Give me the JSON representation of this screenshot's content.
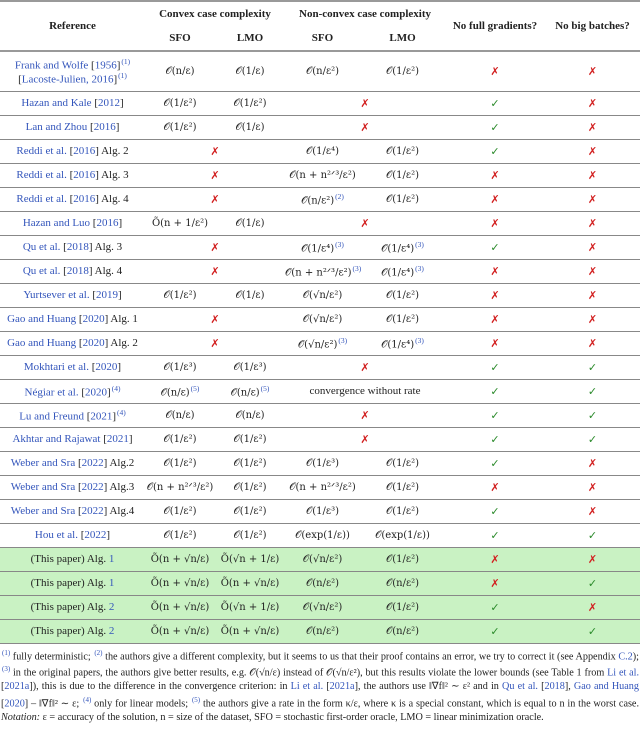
{
  "header": {
    "reference": "Reference",
    "convex": "Convex case complexity",
    "nonconvex": "Non-convex case complexity",
    "sfo": "SFO",
    "lmo": "LMO",
    "no_full": "No full gradients?",
    "no_batch": "No big batches?"
  },
  "colors": {
    "link": "#3355bb",
    "cross": "#d22020",
    "check": "#2a8a2a",
    "ours_bg": "#c9f2c3"
  },
  "rows": [
    {
      "ref": {
        "a": "Frank and Wolfe",
        "y": "1956",
        "n": "(1)"
      },
      "ref2": {
        "a": "Lacoste-Julien, 2016",
        "n": "(1)"
      },
      "cx": [
        {
          "v": "𝒪(n/ε)"
        },
        {
          "v": "𝒪(1/ε)"
        }
      ],
      "nc": [
        {
          "v": "𝒪(n/ε²)"
        },
        {
          "v": "𝒪(1/ε²)"
        }
      ],
      "full": "✗",
      "batch": "✗"
    },
    {
      "ref": {
        "a": "Hazan and Kale",
        "y": "2012"
      },
      "cx": [
        {
          "v": "𝒪(1/ε²)"
        },
        {
          "v": "𝒪(1/ε²)"
        }
      ],
      "nc": "✗",
      "full": "✓",
      "batch": "✗"
    },
    {
      "ref": {
        "a": "Lan and Zhou",
        "y": "2016"
      },
      "cx": [
        {
          "v": "𝒪(1/ε²)"
        },
        {
          "v": "𝒪(1/ε)"
        }
      ],
      "nc": "✗",
      "full": "✓",
      "batch": "✗"
    },
    {
      "ref": {
        "a": "Reddi et al.",
        "y": "2016",
        "s": "Alg. 2"
      },
      "cx": "✗",
      "nc": [
        {
          "v": "𝒪(1/ε⁴)"
        },
        {
          "v": "𝒪(1/ε²)"
        }
      ],
      "full": "✓",
      "batch": "✗"
    },
    {
      "ref": {
        "a": "Reddi et al.",
        "y": "2016",
        "s": "Alg. 3"
      },
      "cx": "✗",
      "nc": [
        {
          "v": "𝒪(n + n²ᐟ³/ε²)"
        },
        {
          "v": "𝒪(1/ε²)"
        }
      ],
      "full": "✗",
      "batch": "✗"
    },
    {
      "ref": {
        "a": "Reddi et al.",
        "y": "2016",
        "s": "Alg. 4"
      },
      "cx": "✗",
      "nc": [
        {
          "v": "𝒪(n/ε²)",
          "n": "(2)"
        },
        {
          "v": "𝒪(1/ε²)"
        }
      ],
      "full": "✗",
      "batch": "✗"
    },
    {
      "ref": {
        "a": "Hazan and Luo",
        "y": "2016"
      },
      "cx": [
        {
          "v": "Õ(n + 1/ε²)"
        },
        {
          "v": "𝒪(1/ε)"
        }
      ],
      "nc": "✗",
      "full": "✗",
      "batch": "✗"
    },
    {
      "ref": {
        "a": "Qu et al.",
        "y": "2018",
        "s": "Alg. 3"
      },
      "cx": "✗",
      "nc": [
        {
          "v": "𝒪(1/ε⁴)",
          "n": "(3)"
        },
        {
          "v": "𝒪(1/ε⁴)",
          "n": "(3)"
        }
      ],
      "full": "✓",
      "batch": "✗"
    },
    {
      "ref": {
        "a": "Qu et al.",
        "y": "2018",
        "s": "Alg. 4"
      },
      "cx": "✗",
      "nc": [
        {
          "v": "𝒪(n + n²ᐟ³/ε²)",
          "n": "(3)"
        },
        {
          "v": "𝒪(1/ε⁴)",
          "n": "(3)"
        }
      ],
      "full": "✗",
      "batch": "✗"
    },
    {
      "ref": {
        "a": "Yurtsever et al.",
        "y": "2019"
      },
      "cx": [
        {
          "v": "𝒪(1/ε²)"
        },
        {
          "v": "𝒪(1/ε)"
        }
      ],
      "nc": [
        {
          "v": "𝒪(√n/ε²)"
        },
        {
          "v": "𝒪(1/ε²)"
        }
      ],
      "full": "✗",
      "batch": "✗"
    },
    {
      "ref": {
        "a": "Gao and Huang",
        "y": "2020",
        "s": "Alg. 1"
      },
      "cx": "✗",
      "nc": [
        {
          "v": "𝒪(√n/ε²)"
        },
        {
          "v": "𝒪(1/ε²)"
        }
      ],
      "full": "✗",
      "batch": "✗"
    },
    {
      "ref": {
        "a": "Gao and Huang",
        "y": "2020",
        "s": "Alg. 2"
      },
      "cx": "✗",
      "nc": [
        {
          "v": "𝒪(√n/ε²)",
          "n": "(3)"
        },
        {
          "v": "𝒪(1/ε⁴)",
          "n": "(3)"
        }
      ],
      "full": "✗",
      "batch": "✗"
    },
    {
      "ref": {
        "a": "Mokhtari et al.",
        "y": "2020"
      },
      "cx": [
        {
          "v": "𝒪(1/ε³)"
        },
        {
          "v": "𝒪(1/ε³)"
        }
      ],
      "nc": "✗",
      "full": "✓",
      "batch": "✓"
    },
    {
      "ref": {
        "a": "Négiar et al.",
        "y": "2020",
        "n": "(4)"
      },
      "cx": [
        {
          "v": "𝒪(n/ε)",
          "n": "(5)"
        },
        {
          "v": "𝒪(n/ε)",
          "n": "(5)"
        }
      ],
      "nc": "convergence without rate",
      "full": "✓",
      "batch": "✓"
    },
    {
      "ref": {
        "a": "Lu and Freund",
        "y": "2021",
        "n": "(4)"
      },
      "cx": [
        {
          "v": "𝒪(n/ε)"
        },
        {
          "v": "𝒪(n/ε)"
        }
      ],
      "nc": "✗",
      "full": "✓",
      "batch": "✓"
    },
    {
      "ref": {
        "a": "Akhtar and Rajawat",
        "y": "2021"
      },
      "cx": [
        {
          "v": "𝒪(1/ε²)"
        },
        {
          "v": "𝒪(1/ε²)"
        }
      ],
      "nc": "✗",
      "full": "✓",
      "batch": "✓"
    },
    {
      "ref": {
        "a": "Weber and Sra",
        "y": "2022",
        "s": "Alg.2"
      },
      "cx": [
        {
          "v": "𝒪(1/ε²)"
        },
        {
          "v": "𝒪(1/ε²)"
        }
      ],
      "nc": [
        {
          "v": "𝒪(1/ε³)"
        },
        {
          "v": "𝒪(1/ε²)"
        }
      ],
      "full": "✓",
      "batch": "✗"
    },
    {
      "ref": {
        "a": "Weber and Sra",
        "y": "2022",
        "s": "Alg.3"
      },
      "cx": [
        {
          "v": "𝒪(n + n²ᐟ³/ε²)"
        },
        {
          "v": "𝒪(1/ε²)"
        }
      ],
      "nc": [
        {
          "v": "𝒪(n + n²ᐟ³/ε²)"
        },
        {
          "v": "𝒪(1/ε²)"
        }
      ],
      "full": "✗",
      "batch": "✗"
    },
    {
      "ref": {
        "a": "Weber and Sra",
        "y": "2022",
        "s": "Alg.4"
      },
      "cx": [
        {
          "v": "𝒪(1/ε²)"
        },
        {
          "v": "𝒪(1/ε²)"
        }
      ],
      "nc": [
        {
          "v": "𝒪(1/ε³)"
        },
        {
          "v": "𝒪(1/ε²)"
        }
      ],
      "full": "✓",
      "batch": "✗"
    },
    {
      "ref": {
        "a": "Hou et al.",
        "y": "2022"
      },
      "cx": [
        {
          "v": "𝒪(1/ε²)"
        },
        {
          "v": "𝒪(1/ε²)"
        }
      ],
      "nc": [
        {
          "v": "𝒪(exp(1/ε))"
        },
        {
          "v": "𝒪(exp(1/ε))"
        }
      ],
      "full": "✓",
      "batch": "✓"
    },
    {
      "ours": true,
      "ref": {
        "p": "(This paper) Alg.",
        "alg": "1"
      },
      "cx": [
        {
          "v": "Õ(n + √n/ε)"
        },
        {
          "v": "Õ(√n + 1/ε)"
        }
      ],
      "nc": [
        {
          "v": "𝒪(√n/ε²)"
        },
        {
          "v": "𝒪(1/ε²)"
        }
      ],
      "full": "✗",
      "batch": "✗"
    },
    {
      "ours": true,
      "ref": {
        "p": "(This paper) Alg.",
        "alg": "1"
      },
      "cx": [
        {
          "v": "Õ(n + √n/ε)"
        },
        {
          "v": "Õ(n + √n/ε)"
        }
      ],
      "nc": [
        {
          "v": "𝒪(n/ε²)"
        },
        {
          "v": "𝒪(n/ε²)"
        }
      ],
      "full": "✗",
      "batch": "✓"
    },
    {
      "ours": true,
      "ref": {
        "p": "(This paper) Alg.",
        "alg": "2"
      },
      "cx": [
        {
          "v": "Õ(n + √n/ε)"
        },
        {
          "v": "Õ(√n + 1/ε)"
        }
      ],
      "nc": [
        {
          "v": "𝒪(√n/ε²)"
        },
        {
          "v": "𝒪(1/ε²)"
        }
      ],
      "full": "✓",
      "batch": "✗"
    },
    {
      "ours": true,
      "ref": {
        "p": "(This paper) Alg.",
        "alg": "2"
      },
      "cx": [
        {
          "v": "Õ(n + √n/ε)"
        },
        {
          "v": "Õ(n + √n/ε)"
        }
      ],
      "nc": [
        {
          "v": "𝒪(n/ε²)"
        },
        {
          "v": "𝒪(n/ε²)"
        }
      ],
      "full": "✓",
      "batch": "✓"
    }
  ],
  "footnote": [
    {
      "t": "(1)",
      "sup": true
    },
    {
      "t": " fully deterministic; "
    },
    {
      "t": "(2)",
      "sup": true
    },
    {
      "t": " the authors give a different complexity, but it seems to us that their proof contains an error, we try to correct it (see Appendix "
    },
    {
      "t": "C.2",
      "l": true
    },
    {
      "t": "); "
    },
    {
      "t": "(3)",
      "sup": true
    },
    {
      "t": " in the original papers, the authors give better results, e.g. 𝒪(√n/ε) instead of 𝒪(√n/ε²), but this results violate the lower bounds (see Table 1 from "
    },
    {
      "t": "Li et al.",
      "l": true
    },
    {
      "t": " ["
    },
    {
      "t": "2021a",
      "l": true
    },
    {
      "t": "]), this is due to the difference in the convergence criterion: in "
    },
    {
      "t": "Li et al.",
      "l": true
    },
    {
      "t": " ["
    },
    {
      "t": "2021a",
      "l": true
    },
    {
      "t": "], the authors use ‖∇f‖² ∼ ε² and in "
    },
    {
      "t": "Qu et al.",
      "l": true
    },
    {
      "t": " ["
    },
    {
      "t": "2018",
      "l": true
    },
    {
      "t": "], "
    },
    {
      "t": "Gao and Huang",
      "l": true
    },
    {
      "t": " ["
    },
    {
      "t": "2020",
      "l": true
    },
    {
      "t": "] – ‖∇f‖² ∼ ε; "
    },
    {
      "t": "(4)",
      "sup": true
    },
    {
      "t": " only for linear models; "
    },
    {
      "t": "(5)",
      "sup": true
    },
    {
      "t": " the authors give a rate in the form κ/ε, where κ is a special constant, which is equal to n in the worst case. "
    },
    {
      "t": "Notation:",
      "i": true
    },
    {
      "t": " ε = accuracy of the solution, n = size of the dataset, SFO = stochastic first-order oracle, LMO = linear minimization oracle."
    }
  ]
}
